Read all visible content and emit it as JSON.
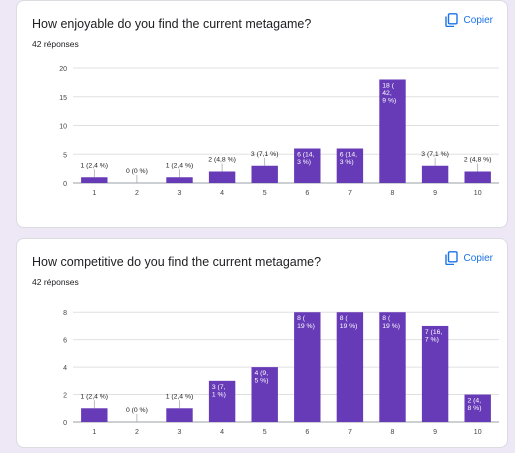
{
  "page": {
    "background": "#ede7f6",
    "accent": "#1a73e8",
    "bar_color": "#673ab7"
  },
  "cards": [
    {
      "title": "How enjoyable do you find the current metagame?",
      "responses": "42 réponses",
      "copy_label": "Copier",
      "copy_icon": "copy-icon"
    },
    {
      "title": "How competitive do you find the current metagame?",
      "responses": "42 réponses",
      "copy_label": "Copier",
      "copy_icon": "copy-icon"
    }
  ],
  "chart_data": [
    {
      "type": "bar",
      "categories": [
        "1",
        "2",
        "3",
        "4",
        "5",
        "6",
        "7",
        "8",
        "9",
        "10"
      ],
      "values": [
        1,
        0,
        1,
        2,
        3,
        6,
        6,
        18,
        3,
        2
      ],
      "data_labels": [
        "1 (2,4 %)",
        "0 (0 %)",
        "1 (2,4 %)",
        "2 (4,8 %)",
        "3 (7,1 %)",
        "6 (14,\n3 %)",
        "6 (14,\n3 %)",
        "18 (\n42,\n9 %)",
        "3 (7,1 %)",
        "2 (4,8 %)"
      ],
      "label_inside": [
        false,
        false,
        false,
        false,
        false,
        true,
        true,
        true,
        false,
        false
      ],
      "yticks": [
        0,
        5,
        10,
        15,
        20
      ],
      "ylim": [
        0,
        20
      ],
      "grid": true,
      "color": "#673ab7"
    },
    {
      "type": "bar",
      "categories": [
        "1",
        "2",
        "3",
        "4",
        "5",
        "6",
        "7",
        "8",
        "9",
        "10"
      ],
      "values": [
        1,
        0,
        1,
        3,
        4,
        8,
        8,
        8,
        7,
        2
      ],
      "data_labels": [
        "1 (2,4 %)",
        "0 (0 %)",
        "1 (2,4 %)",
        "3 (7,\n1 %)",
        "4 (9,\n5 %)",
        "8 (\n19 %)",
        "8 (\n19 %)",
        "8 (\n19 %)",
        "7 (16,\n7 %)",
        "2 (4,\n8 %)"
      ],
      "label_inside": [
        false,
        false,
        false,
        true,
        true,
        true,
        true,
        true,
        true,
        true
      ],
      "yticks": [
        0,
        2,
        4,
        6,
        8
      ],
      "ylim": [
        0,
        8.6
      ],
      "grid": true,
      "color": "#673ab7"
    }
  ]
}
